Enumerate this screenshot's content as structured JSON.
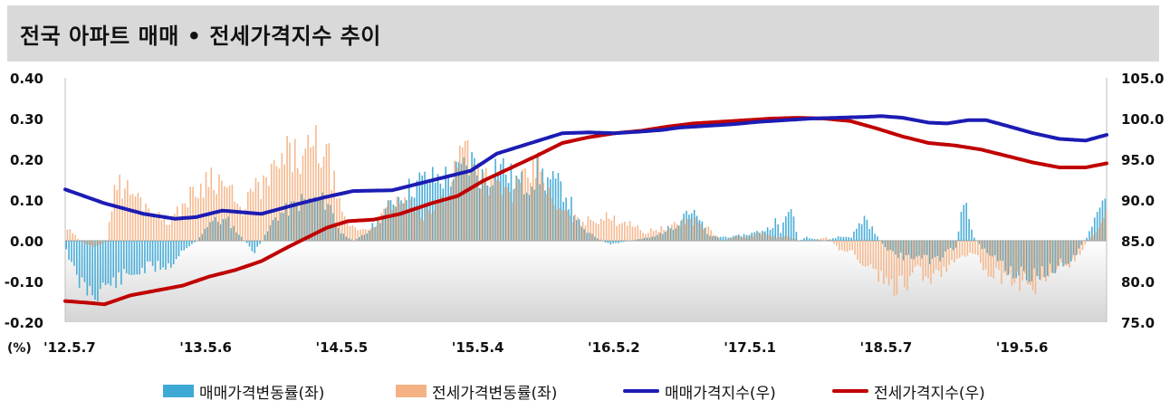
{
  "title": "전국 아파트 매매 • 전세가격지수 추이",
  "chart_data": {
    "type": "bar",
    "x_tick_labels": [
      "'12.5.7",
      "'13.5.6",
      "'14.5.5",
      "'15.5.4",
      "'16.5.2",
      "'17.5.1",
      "'18.5.7",
      "'19.5.6"
    ],
    "x_tick_weeks": [
      0,
      52,
      104,
      156,
      208,
      260,
      312,
      364
    ],
    "n_weeks": 398,
    "y_left": {
      "unit_label": "(%)",
      "range": [
        -0.2,
        0.4
      ],
      "ticks": [
        "0.40",
        "0.30",
        "0.20",
        "0.10",
        "0.00",
        "-0.10",
        "-0.20"
      ]
    },
    "y_right": {
      "range": [
        75.0,
        105.0
      ],
      "ticks": [
        "105.0",
        "100.0",
        "95.0",
        "90.0",
        "85.0",
        "80.0",
        "75.0"
      ]
    },
    "series": [
      {
        "name": "매매가격변동률(좌)",
        "kind": "bar",
        "axis": "left",
        "color": "#3fa9d6",
        "keypoints": [
          [
            0,
            -0.02
          ],
          [
            4,
            -0.1
          ],
          [
            10,
            -0.13
          ],
          [
            20,
            -0.1
          ],
          [
            30,
            -0.07
          ],
          [
            40,
            -0.06
          ],
          [
            45,
            -0.02
          ],
          [
            50,
            0.0
          ],
          [
            55,
            0.05
          ],
          [
            62,
            0.05
          ],
          [
            68,
            0.0
          ],
          [
            72,
            -0.03
          ],
          [
            75,
            0.0
          ],
          [
            80,
            0.06
          ],
          [
            90,
            0.1
          ],
          [
            100,
            0.1
          ],
          [
            105,
            0.02
          ],
          [
            110,
            0.0
          ],
          [
            115,
            0.02
          ],
          [
            125,
            0.1
          ],
          [
            135,
            0.15
          ],
          [
            145,
            0.16
          ],
          [
            150,
            0.17
          ],
          [
            155,
            0.2
          ],
          [
            160,
            0.15
          ],
          [
            165,
            0.2
          ],
          [
            170,
            0.16
          ],
          [
            175,
            0.14
          ],
          [
            180,
            0.17
          ],
          [
            185,
            0.15
          ],
          [
            190,
            0.13
          ],
          [
            193,
            0.09
          ],
          [
            197,
            0.03
          ],
          [
            202,
            0.01
          ],
          [
            208,
            -0.01
          ],
          [
            215,
            0.0
          ],
          [
            225,
            0.01
          ],
          [
            230,
            0.03
          ],
          [
            233,
            0.04
          ],
          [
            237,
            0.08
          ],
          [
            241,
            0.06
          ],
          [
            246,
            0.01
          ],
          [
            255,
            0.01
          ],
          [
            263,
            0.02
          ],
          [
            268,
            0.03
          ],
          [
            271,
            0.05
          ],
          [
            273,
            0.02
          ],
          [
            276,
            0.09
          ],
          [
            278,
            0.05
          ],
          [
            280,
            0.0
          ],
          [
            283,
            0.01
          ],
          [
            290,
            0.0
          ],
          [
            295,
            0.01
          ],
          [
            300,
            0.01
          ],
          [
            303,
            0.04
          ],
          [
            305,
            0.06
          ],
          [
            308,
            0.03
          ],
          [
            312,
            -0.01
          ],
          [
            318,
            -0.04
          ],
          [
            325,
            -0.04
          ],
          [
            330,
            -0.05
          ],
          [
            335,
            -0.04
          ],
          [
            338,
            -0.02
          ],
          [
            340,
            -0.02
          ],
          [
            342,
            0.06
          ],
          [
            344,
            0.09
          ],
          [
            345,
            0.05
          ],
          [
            347,
            0.01
          ],
          [
            350,
            -0.02
          ],
          [
            356,
            -0.05
          ],
          [
            362,
            -0.08
          ],
          [
            368,
            -0.09
          ],
          [
            375,
            -0.08
          ],
          [
            380,
            -0.06
          ],
          [
            385,
            -0.04
          ],
          [
            388,
            -0.01
          ],
          [
            392,
            0.03
          ],
          [
            395,
            0.08
          ],
          [
            398,
            0.11
          ]
        ]
      },
      {
        "name": "전세가격변동률(좌)",
        "kind": "bar",
        "axis": "left",
        "color": "#f4b183",
        "keypoints": [
          [
            0,
            0.03
          ],
          [
            5,
            0.0
          ],
          [
            10,
            -0.02
          ],
          [
            15,
            0.0
          ],
          [
            18,
            0.15
          ],
          [
            25,
            0.12
          ],
          [
            30,
            0.09
          ],
          [
            35,
            0.06
          ],
          [
            40,
            0.05
          ],
          [
            45,
            0.1
          ],
          [
            50,
            0.13
          ],
          [
            55,
            0.17
          ],
          [
            62,
            0.13
          ],
          [
            66,
            0.07
          ],
          [
            70,
            0.12
          ],
          [
            75,
            0.14
          ],
          [
            80,
            0.18
          ],
          [
            85,
            0.22
          ],
          [
            90,
            0.2
          ],
          [
            95,
            0.24
          ],
          [
            100,
            0.2
          ],
          [
            105,
            0.06
          ],
          [
            110,
            0.03
          ],
          [
            115,
            0.03
          ],
          [
            120,
            0.06
          ],
          [
            125,
            0.1
          ],
          [
            130,
            0.09
          ],
          [
            135,
            0.06
          ],
          [
            140,
            0.08
          ],
          [
            145,
            0.12
          ],
          [
            150,
            0.22
          ],
          [
            153,
            0.25
          ],
          [
            156,
            0.19
          ],
          [
            160,
            0.16
          ],
          [
            165,
            0.13
          ],
          [
            170,
            0.12
          ],
          [
            175,
            0.15
          ],
          [
            180,
            0.19
          ],
          [
            182,
            0.17
          ],
          [
            185,
            0.09
          ],
          [
            190,
            0.07
          ],
          [
            195,
            0.05
          ],
          [
            200,
            0.05
          ],
          [
            205,
            0.06
          ],
          [
            210,
            0.05
          ],
          [
            215,
            0.05
          ],
          [
            220,
            0.02
          ],
          [
            225,
            0.03
          ],
          [
            230,
            0.03
          ],
          [
            235,
            0.05
          ],
          [
            240,
            0.05
          ],
          [
            245,
            0.03
          ],
          [
            250,
            0.0
          ],
          [
            255,
            0.01
          ],
          [
            260,
            0.01
          ],
          [
            265,
            0.02
          ],
          [
            270,
            0.01
          ],
          [
            275,
            0.01
          ],
          [
            280,
            0.0
          ],
          [
            285,
            0.0
          ],
          [
            290,
            0.01
          ],
          [
            295,
            -0.02
          ],
          [
            300,
            -0.03
          ],
          [
            305,
            -0.06
          ],
          [
            310,
            -0.09
          ],
          [
            315,
            -0.12
          ],
          [
            320,
            -0.11
          ],
          [
            325,
            -0.08
          ],
          [
            330,
            -0.09
          ],
          [
            335,
            -0.07
          ],
          [
            340,
            -0.04
          ],
          [
            345,
            -0.03
          ],
          [
            350,
            -0.06
          ],
          [
            355,
            -0.09
          ],
          [
            360,
            -0.11
          ],
          [
            365,
            -0.1
          ],
          [
            370,
            -0.11
          ],
          [
            375,
            -0.09
          ],
          [
            380,
            -0.07
          ],
          [
            385,
            -0.05
          ],
          [
            390,
            0.0
          ],
          [
            395,
            0.04
          ],
          [
            398,
            0.08
          ]
        ]
      },
      {
        "name": "매매가격지수(우)",
        "kind": "line",
        "axis": "right",
        "color": "#1c1cb4",
        "keypoints": [
          [
            0,
            91.3
          ],
          [
            15,
            89.6
          ],
          [
            30,
            88.3
          ],
          [
            42,
            87.7
          ],
          [
            50,
            87.9
          ],
          [
            60,
            88.7
          ],
          [
            75,
            88.3
          ],
          [
            90,
            89.6
          ],
          [
            100,
            90.4
          ],
          [
            110,
            91.1
          ],
          [
            125,
            91.2
          ],
          [
            135,
            92.0
          ],
          [
            145,
            92.8
          ],
          [
            155,
            93.6
          ],
          [
            165,
            95.7
          ],
          [
            180,
            97.2
          ],
          [
            190,
            98.2
          ],
          [
            200,
            98.3
          ],
          [
            210,
            98.2
          ],
          [
            220,
            98.4
          ],
          [
            228,
            98.6
          ],
          [
            235,
            98.9
          ],
          [
            245,
            99.1
          ],
          [
            255,
            99.3
          ],
          [
            265,
            99.6
          ],
          [
            275,
            99.8
          ],
          [
            285,
            100.0
          ],
          [
            295,
            100.1
          ],
          [
            305,
            100.2
          ],
          [
            312,
            100.3
          ],
          [
            320,
            100.1
          ],
          [
            330,
            99.5
          ],
          [
            337,
            99.4
          ],
          [
            345,
            99.8
          ],
          [
            352,
            99.8
          ],
          [
            360,
            99.1
          ],
          [
            370,
            98.2
          ],
          [
            380,
            97.5
          ],
          [
            390,
            97.3
          ],
          [
            398,
            98.0
          ]
        ]
      },
      {
        "name": "전세가격지수(우)",
        "kind": "line",
        "axis": "right",
        "color": "#c00000",
        "keypoints": [
          [
            0,
            77.6
          ],
          [
            8,
            77.4
          ],
          [
            15,
            77.2
          ],
          [
            25,
            78.3
          ],
          [
            35,
            78.9
          ],
          [
            45,
            79.5
          ],
          [
            55,
            80.6
          ],
          [
            65,
            81.4
          ],
          [
            75,
            82.5
          ],
          [
            85,
            84.2
          ],
          [
            95,
            85.8
          ],
          [
            100,
            86.6
          ],
          [
            108,
            87.4
          ],
          [
            118,
            87.6
          ],
          [
            128,
            88.3
          ],
          [
            140,
            89.6
          ],
          [
            150,
            90.5
          ],
          [
            160,
            92.4
          ],
          [
            170,
            93.9
          ],
          [
            180,
            95.4
          ],
          [
            190,
            97.0
          ],
          [
            200,
            97.7
          ],
          [
            210,
            98.2
          ],
          [
            220,
            98.5
          ],
          [
            230,
            99.0
          ],
          [
            240,
            99.4
          ],
          [
            250,
            99.6
          ],
          [
            260,
            99.8
          ],
          [
            270,
            100.0
          ],
          [
            280,
            100.1
          ],
          [
            290,
            100.0
          ],
          [
            300,
            99.7
          ],
          [
            310,
            98.8
          ],
          [
            320,
            97.8
          ],
          [
            330,
            97.0
          ],
          [
            340,
            96.7
          ],
          [
            350,
            96.2
          ],
          [
            360,
            95.4
          ],
          [
            370,
            94.6
          ],
          [
            380,
            94.0
          ],
          [
            390,
            94.0
          ],
          [
            398,
            94.5
          ]
        ]
      }
    ]
  }
}
